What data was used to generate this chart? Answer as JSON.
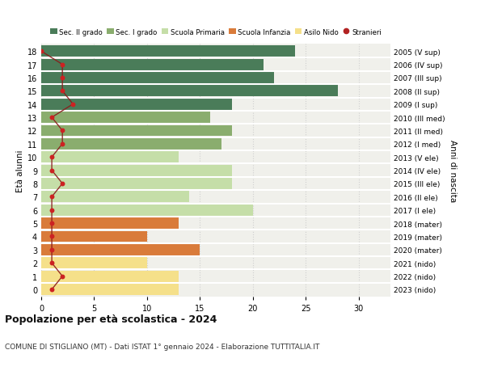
{
  "ages": [
    18,
    17,
    16,
    15,
    14,
    13,
    12,
    11,
    10,
    9,
    8,
    7,
    6,
    5,
    4,
    3,
    2,
    1,
    0
  ],
  "right_labels": [
    "2005 (V sup)",
    "2006 (IV sup)",
    "2007 (III sup)",
    "2008 (II sup)",
    "2009 (I sup)",
    "2010 (III med)",
    "2011 (II med)",
    "2012 (I med)",
    "2013 (V ele)",
    "2014 (IV ele)",
    "2015 (III ele)",
    "2016 (II ele)",
    "2017 (I ele)",
    "2018 (mater)",
    "2019 (mater)",
    "2020 (mater)",
    "2021 (nido)",
    "2022 (nido)",
    "2023 (nido)"
  ],
  "bar_values": [
    24,
    21,
    22,
    28,
    18,
    16,
    18,
    17,
    13,
    18,
    18,
    14,
    20,
    13,
    10,
    15,
    10,
    13,
    13
  ],
  "bar_colors": [
    "#4a7c59",
    "#4a7c59",
    "#4a7c59",
    "#4a7c59",
    "#4a7c59",
    "#8aad6e",
    "#8aad6e",
    "#8aad6e",
    "#c5dea8",
    "#c5dea8",
    "#c5dea8",
    "#c5dea8",
    "#c5dea8",
    "#d97b3a",
    "#d97b3a",
    "#d97b3a",
    "#f5e08a",
    "#f5e08a",
    "#f5e08a"
  ],
  "stranieri_values": [
    0,
    2,
    2,
    2,
    3,
    1,
    2,
    2,
    1,
    1,
    2,
    1,
    1,
    1,
    1,
    1,
    1,
    2,
    1
  ],
  "legend_labels": [
    "Sec. II grado",
    "Sec. I grado",
    "Scuola Primaria",
    "Scuola Infanzia",
    "Asilo Nido",
    "Stranieri"
  ],
  "legend_colors": [
    "#4a7c59",
    "#8aad6e",
    "#c5dea8",
    "#d97b3a",
    "#f5e08a",
    "#b22222"
  ],
  "title": "Popolazione per età scolastica - 2024",
  "subtitle": "COMUNE DI STIGLIANO (MT) - Dati ISTAT 1° gennaio 2024 - Elaborazione TUTTITALIA.IT",
  "ylabel_left": "Età alunni",
  "ylabel_right": "Anni di nascita",
  "xlim": [
    0,
    33
  ],
  "background_color": "#ffffff",
  "bar_background": "#f0f0eb",
  "grid_color": "#d0d0d0"
}
